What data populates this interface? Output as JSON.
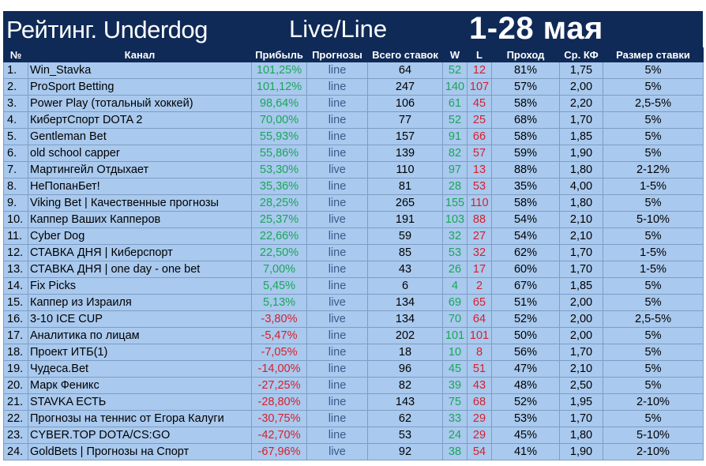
{
  "header": {
    "title": "Рейтинг. Underdog",
    "subtitle": "Live/Line",
    "period": "1-28 мая"
  },
  "columns": [
    "№",
    "Канал",
    "Прибыль",
    "Прогнозы",
    "Всего ставок",
    "W",
    "L",
    "Проход",
    "Ср. КФ",
    "Размер ставки"
  ],
  "colors": {
    "header_bg": "#0f2a57",
    "row_bg": "#a9c9ee",
    "positive": "#1aa657",
    "negative": "#d61f2c"
  },
  "rows": [
    {
      "n": "1.",
      "name": "Win_Stavka",
      "profit": "101,25%",
      "type": "line",
      "total": "64",
      "w": "52",
      "l": "12",
      "pass": "81%",
      "kf": "1,75",
      "size": "5%",
      "neg": false
    },
    {
      "n": "2.",
      "name": "ProSport Betting",
      "profit": "101,12%",
      "type": "line",
      "total": "247",
      "w": "140",
      "l": "107",
      "pass": "57%",
      "kf": "2,00",
      "size": "5%",
      "neg": false
    },
    {
      "n": "3.",
      "name": "Power Play (тотальный хоккей)",
      "profit": "98,64%",
      "type": "line",
      "total": "106",
      "w": "61",
      "l": "45",
      "pass": "58%",
      "kf": "2,20",
      "size": "2,5-5%",
      "neg": false
    },
    {
      "n": "4.",
      "name": "КибертСпорт DOTA 2",
      "profit": "70,00%",
      "type": "line",
      "total": "77",
      "w": "52",
      "l": "25",
      "pass": "68%",
      "kf": "1,70",
      "size": "5%",
      "neg": false
    },
    {
      "n": "5.",
      "name": "Gentleman Bet",
      "profit": "55,93%",
      "type": "line",
      "total": "157",
      "w": "91",
      "l": "66",
      "pass": "58%",
      "kf": "1,85",
      "size": "5%",
      "neg": false
    },
    {
      "n": "6.",
      "name": "old school capper",
      "profit": "55,86%",
      "type": "line",
      "total": "139",
      "w": "82",
      "l": "57",
      "pass": "59%",
      "kf": "1,90",
      "size": "5%",
      "neg": false
    },
    {
      "n": "7.",
      "name": "Мартингейл Отдыхает",
      "profit": "53,30%",
      "type": "live",
      "total": "110",
      "w": "97",
      "l": "13",
      "pass": "88%",
      "kf": "1,80",
      "size": "2-12%",
      "neg": false
    },
    {
      "n": "8.",
      "name": "НеПопанБет!",
      "profit": "35,36%",
      "type": "line",
      "total": "81",
      "w": "28",
      "l": "53",
      "pass": "35%",
      "kf": "4,00",
      "size": "1-5%",
      "neg": false
    },
    {
      "n": "9.",
      "name": "Viking Bet | Качественные прогнозы",
      "profit": "28,25%",
      "type": "line",
      "total": "265",
      "w": "155",
      "l": "110",
      "pass": "58%",
      "kf": "1,80",
      "size": "5%",
      "neg": false
    },
    {
      "n": "10.",
      "name": "Каппер Ваших Капперов",
      "profit": "25,37%",
      "type": "live",
      "total": "191",
      "w": "103",
      "l": "88",
      "pass": "54%",
      "kf": "2,10",
      "size": "5-10%",
      "neg": false
    },
    {
      "n": "11.",
      "name": "Cyber Dog",
      "profit": "22,66%",
      "type": "line",
      "total": "59",
      "w": "32",
      "l": "27",
      "pass": "54%",
      "kf": "2,10",
      "size": "5%",
      "neg": false
    },
    {
      "n": "12.",
      "name": "СТАВКА ДНЯ | Киберспорт",
      "profit": "22,50%",
      "type": "line",
      "total": "85",
      "w": "53",
      "l": "32",
      "pass": "62%",
      "kf": "1,70",
      "size": "1-5%",
      "neg": false
    },
    {
      "n": "13.",
      "name": "СТАВКА ДНЯ | one day - one bet",
      "profit": "7,00%",
      "type": "line",
      "total": "43",
      "w": "26",
      "l": "17",
      "pass": "60%",
      "kf": "1,70",
      "size": "1-5%",
      "neg": false
    },
    {
      "n": "14.",
      "name": "Fix Picks",
      "profit": "5,45%",
      "type": "line",
      "total": "6",
      "w": "4",
      "l": "2",
      "pass": "67%",
      "kf": "1,85",
      "size": "5%",
      "neg": false
    },
    {
      "n": "15.",
      "name": "Каппер из Израиля",
      "profit": "5,13%",
      "type": "live",
      "total": "134",
      "w": "69",
      "l": "65",
      "pass": "51%",
      "kf": "2,00",
      "size": "5%",
      "neg": false
    },
    {
      "n": "16.",
      "name": "3-10 ICE CUP",
      "profit": "-3,80%",
      "type": "live",
      "total": "134",
      "w": "70",
      "l": "64",
      "pass": "52%",
      "kf": "2,00",
      "size": "2,5-5%",
      "neg": true
    },
    {
      "n": "17.",
      "name": "Аналитика по лицам",
      "profit": "-5,47%",
      "type": "line",
      "total": "202",
      "w": "101",
      "l": "101",
      "pass": "50%",
      "kf": "2,00",
      "size": "5%",
      "neg": true
    },
    {
      "n": "18.",
      "name": "Проект ИТБ(1)",
      "profit": "-7,05%",
      "type": "line",
      "total": "18",
      "w": "10",
      "l": "8",
      "pass": "56%",
      "kf": "1,70",
      "size": "5%",
      "neg": true
    },
    {
      "n": "19.",
      "name": "Чудеса.Bet",
      "profit": "-14,00%",
      "type": "line",
      "total": "96",
      "w": "45",
      "l": "51",
      "pass": "47%",
      "kf": "2,10",
      "size": "5%",
      "neg": true
    },
    {
      "n": "20.",
      "name": "Марк Феникс",
      "profit": "-27,25%",
      "type": "line",
      "total": "82",
      "w": "39",
      "l": "43",
      "pass": "48%",
      "kf": "2,50",
      "size": "5%",
      "neg": true
    },
    {
      "n": "21.",
      "name": "STAVKA ЕСТЬ",
      "profit": "-28,80%",
      "type": "line",
      "total": "143",
      "w": "75",
      "l": "68",
      "pass": "52%",
      "kf": "1,95",
      "size": "2-10%",
      "neg": true
    },
    {
      "n": "22.",
      "name": "Прогнозы на теннис от Егора Калуги",
      "profit": "-30,75%",
      "type": "line",
      "total": "62",
      "w": "33",
      "l": "29",
      "pass": "53%",
      "kf": "1,70",
      "size": "5%",
      "neg": true
    },
    {
      "n": "23.",
      "name": "CYBER.TOP DOTA/CS:GO",
      "profit": "-42,70%",
      "type": "line",
      "total": "53",
      "w": "24",
      "l": "29",
      "pass": "45%",
      "kf": "1,80",
      "size": "5-10%",
      "neg": true
    },
    {
      "n": "24.",
      "name": "GoldBets | Прогнозы на Спорт",
      "profit": "-67,96%",
      "type": "live",
      "total": "92",
      "w": "38",
      "l": "54",
      "pass": "41%",
      "kf": "1,90",
      "size": "2-10%",
      "neg": true
    }
  ]
}
